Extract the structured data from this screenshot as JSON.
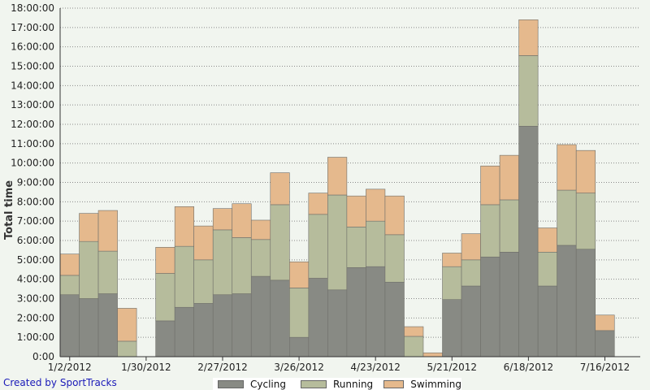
{
  "chart_data": {
    "type": "bar",
    "stacked": true,
    "ylabel": "Total time",
    "y_ticks": [
      "0:00",
      "1:00:00",
      "2:00:00",
      "3:00:00",
      "4:00:00",
      "5:00:00",
      "6:00:00",
      "7:00:00",
      "8:00:00",
      "9:00:00",
      "10:00:00",
      "11:00:00",
      "12:00:00",
      "13:00:00",
      "14:00:00",
      "15:00:00",
      "16:00:00",
      "17:00:00",
      "18:00:00"
    ],
    "ylim_hours": [
      0,
      18
    ],
    "x_tick_labels": [
      "1/2/2012",
      "1/30/2012",
      "2/27/2012",
      "3/26/2012",
      "4/23/2012",
      "5/21/2012",
      "6/18/2012",
      "7/16/2012"
    ],
    "x_tick_week_index": [
      0,
      4,
      8,
      12,
      16,
      20,
      24,
      28
    ],
    "grid": "horizontal dotted",
    "legend_position": "bottom",
    "series": [
      {
        "name": "Cycling",
        "color": "#888a84",
        "values": [
          3.2,
          3.0,
          3.25,
          0,
          0,
          1.85,
          2.55,
          2.75,
          3.2,
          3.25,
          4.15,
          3.95,
          1.0,
          4.05,
          3.45,
          4.6,
          4.65,
          3.85,
          0,
          0,
          2.95,
          3.65,
          5.15,
          5.4,
          11.9,
          3.65,
          5.75,
          5.55,
          1.35
        ]
      },
      {
        "name": "Running",
        "color": "#b6bc9c",
        "values": [
          1.0,
          2.95,
          2.2,
          0.8,
          0,
          2.45,
          3.15,
          2.25,
          3.35,
          2.9,
          1.9,
          3.9,
          2.55,
          3.3,
          4.9,
          2.1,
          2.35,
          2.45,
          1.05,
          0,
          1.7,
          1.35,
          2.7,
          2.7,
          3.65,
          1.75,
          2.85,
          2.9,
          0
        ]
      },
      {
        "name": "Swimming",
        "color": "#e5b98d",
        "values": [
          1.1,
          1.45,
          2.1,
          1.7,
          0,
          1.35,
          2.05,
          1.75,
          1.1,
          1.75,
          1.0,
          1.65,
          1.35,
          1.1,
          1.95,
          1.6,
          1.65,
          2.0,
          0.5,
          0.2,
          0.7,
          1.35,
          2.0,
          2.3,
          1.85,
          1.25,
          2.35,
          2.2,
          0.8
        ]
      }
    ]
  },
  "credit_text": "Created by SportTracks"
}
